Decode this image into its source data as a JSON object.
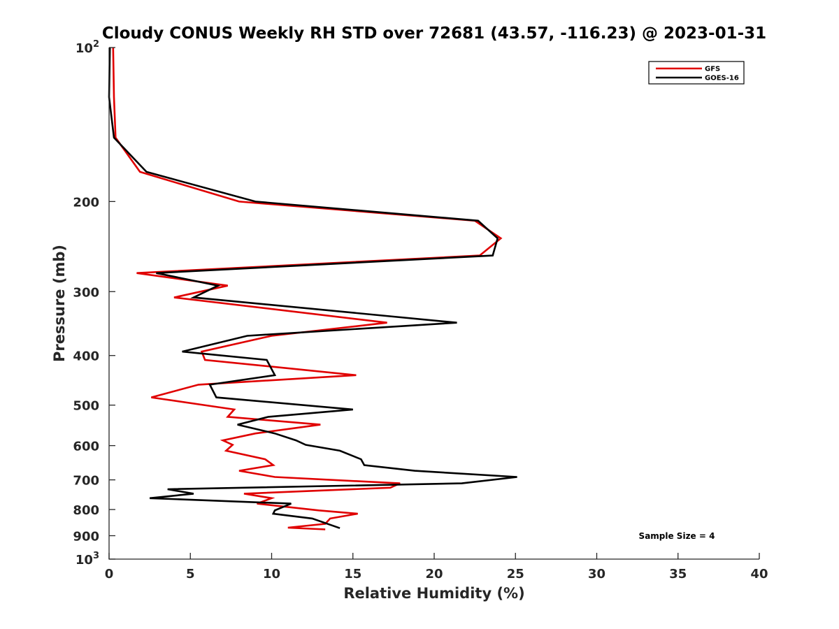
{
  "chart_data": {
    "type": "line",
    "title": "Cloudy CONUS Weekly RH STD over 72681 (43.57, -116.23) @ 2023-01-31",
    "xlabel": "Relative Humidity (%)",
    "ylabel": "Pressure (mb)",
    "xlim": [
      0,
      40
    ],
    "ylim": [
      100,
      1000
    ],
    "y_scale": "log",
    "y_reversed": true,
    "grid": false,
    "legend_position": "top-right",
    "x_ticks": [
      "0",
      "5",
      "10",
      "15",
      "20",
      "25",
      "30",
      "35",
      "40"
    ],
    "y_ticks": [
      {
        "value": 100,
        "base": "10",
        "sup": "2"
      },
      {
        "value": 200,
        "base": "200",
        "sup": ""
      },
      {
        "value": 300,
        "base": "300",
        "sup": ""
      },
      {
        "value": 400,
        "base": "400",
        "sup": ""
      },
      {
        "value": 500,
        "base": "500",
        "sup": ""
      },
      {
        "value": 600,
        "base": "600",
        "sup": ""
      },
      {
        "value": 700,
        "base": "700",
        "sup": ""
      },
      {
        "value": 800,
        "base": "800",
        "sup": ""
      },
      {
        "value": 900,
        "base": "900",
        "sup": ""
      },
      {
        "value": 1000,
        "base": "10",
        "sup": "3"
      }
    ],
    "annotation": "Sample Size = 4",
    "series": [
      {
        "name": "GFS",
        "color": "#e00000",
        "points": [
          [
            0.25,
            100
          ],
          [
            0.3,
            125
          ],
          [
            0.4,
            150
          ],
          [
            1.9,
            175
          ],
          [
            8.0,
            200
          ],
          [
            22.5,
            218
          ],
          [
            24.1,
            236
          ],
          [
            22.8,
            255
          ],
          [
            1.7,
            276
          ],
          [
            7.3,
            292
          ],
          [
            4.0,
            308
          ],
          [
            17.1,
            345
          ],
          [
            10.0,
            366
          ],
          [
            5.7,
            393
          ],
          [
            5.9,
            408
          ],
          [
            15.2,
            437
          ],
          [
            5.5,
            456
          ],
          [
            2.6,
            483
          ],
          [
            7.7,
            510
          ],
          [
            7.3,
            527
          ],
          [
            13.0,
            546
          ],
          [
            9.0,
            568
          ],
          [
            7.0,
            586
          ],
          [
            7.6,
            598
          ],
          [
            7.2,
            614
          ],
          [
            9.6,
            638
          ],
          [
            10.1,
            655
          ],
          [
            8.0,
            672
          ],
          [
            10.2,
            691
          ],
          [
            17.9,
            711
          ],
          [
            17.3,
            725
          ],
          [
            8.3,
            745
          ],
          [
            10.0,
            760
          ],
          [
            9.1,
            779
          ],
          [
            12.9,
            803
          ],
          [
            15.3,
            815
          ],
          [
            13.6,
            833
          ],
          [
            13.3,
            853
          ],
          [
            11.0,
            868
          ],
          [
            13.3,
            875
          ]
        ]
      },
      {
        "name": "GOES-16",
        "color": "#000000",
        "points": [
          [
            0.05,
            100
          ],
          [
            0.0,
            125
          ],
          [
            0.3,
            150
          ],
          [
            2.3,
            175
          ],
          [
            9.0,
            200
          ],
          [
            22.7,
            218
          ],
          [
            23.9,
            236
          ],
          [
            23.6,
            255
          ],
          [
            2.9,
            276
          ],
          [
            6.7,
            292
          ],
          [
            5.2,
            308
          ],
          [
            21.4,
            345
          ],
          [
            8.5,
            366
          ],
          [
            4.5,
            393
          ],
          [
            9.7,
            408
          ],
          [
            10.2,
            437
          ],
          [
            6.2,
            456
          ],
          [
            6.6,
            483
          ],
          [
            15.0,
            510
          ],
          [
            9.8,
            527
          ],
          [
            7.9,
            546
          ],
          [
            10.2,
            568
          ],
          [
            11.5,
            586
          ],
          [
            12.1,
            598
          ],
          [
            14.2,
            614
          ],
          [
            15.5,
            638
          ],
          [
            15.7,
            655
          ],
          [
            18.8,
            672
          ],
          [
            25.1,
            691
          ],
          [
            21.7,
            711
          ],
          [
            3.6,
            730
          ],
          [
            5.2,
            745
          ],
          [
            2.5,
            760
          ],
          [
            11.2,
            779
          ],
          [
            10.2,
            803
          ],
          [
            10.1,
            815
          ],
          [
            12.5,
            833
          ],
          [
            14.2,
            870
          ]
        ]
      }
    ]
  }
}
